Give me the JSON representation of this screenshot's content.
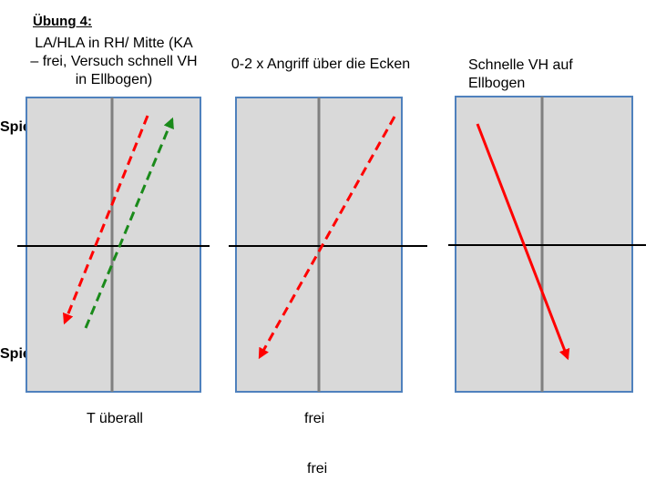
{
  "exercise_title": "Übung 4:",
  "player_top": "Spieler A",
  "player_bottom": "Spieler B",
  "colors": {
    "table_fill": "#d9d9d9",
    "table_border": "#4f81bd",
    "center_line": "#808080",
    "net": "#000000",
    "red": "#ff0000",
    "green": "#1a8a1a"
  },
  "columns": [
    {
      "title_lines": [
        "LA/HLA in RH/ Mitte (KA",
        "– frei, Versuch schnell VH",
        "in Ellbogen)"
      ],
      "caption": "T überall"
    },
    {
      "title_lines": [
        "0-2 x Angriff über die Ecken"
      ],
      "caption": "frei"
    },
    {
      "title_lines": [
        "Schnelle VH auf",
        "Ellbogen"
      ],
      "caption": ""
    }
  ],
  "footer_note": "frei"
}
